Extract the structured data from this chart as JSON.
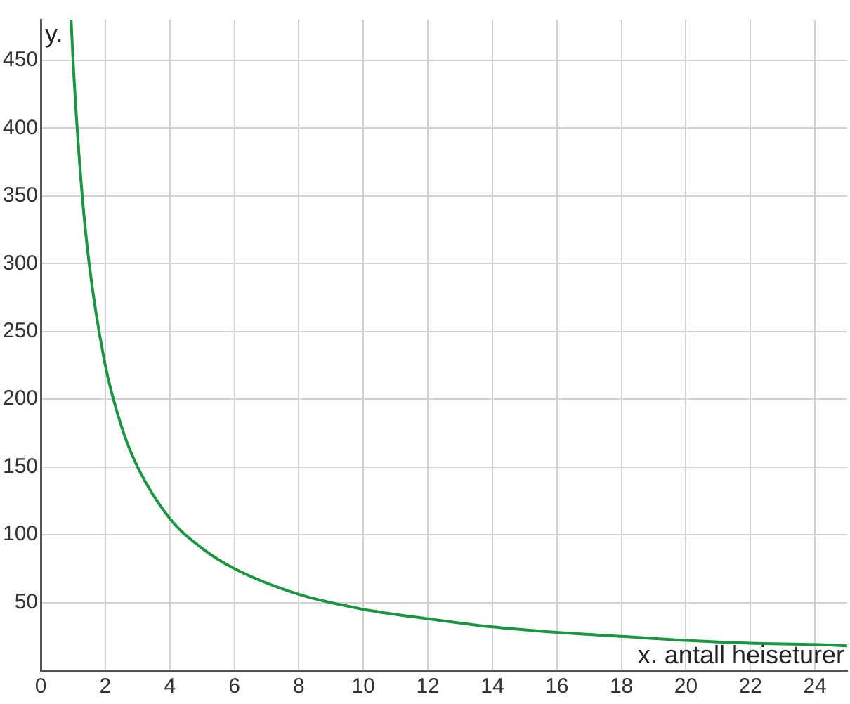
{
  "chart_data": {
    "type": "line",
    "xlabel": "x. antall heiseturer",
    "ylabel": "y.",
    "x": [
      0.94,
      1,
      1.25,
      1.5,
      2,
      2.5,
      3,
      4,
      5,
      6,
      8,
      10,
      12,
      14,
      16,
      18,
      20,
      22,
      24,
      25
    ],
    "series": [
      {
        "color": "#1a9641",
        "values": [
          480,
          450,
          360,
          300,
          225,
          180,
          150,
          112,
          90,
          75,
          56,
          45,
          38,
          32,
          28,
          25,
          22,
          20,
          19,
          18
        ]
      }
    ],
    "xlim": [
      0,
      25
    ],
    "xticks": [
      0,
      2,
      4,
      6,
      8,
      10,
      12,
      14,
      16,
      18,
      20,
      22,
      24
    ],
    "ylim": [
      0,
      480
    ],
    "yticks": [
      {
        "value": 0,
        "label": null
      },
      50,
      100,
      150,
      200,
      250,
      300,
      350,
      400,
      450
    ],
    "grid": true,
    "marker": "none",
    "line_style": "solid",
    "legend": false
  }
}
